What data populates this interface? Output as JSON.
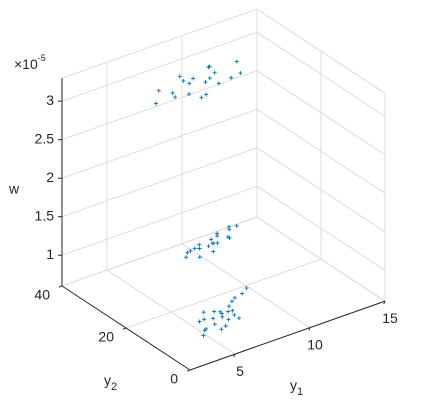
{
  "chart_data": {
    "type": "scatter3d",
    "xlabel": {
      "base": "y",
      "sub": "1"
    },
    "ylabel": {
      "base": "y",
      "sub": "2"
    },
    "zlabel": "w",
    "z_multiplier": {
      "base": "×10",
      "exp": "-5"
    },
    "xlim": [
      2,
      15
    ],
    "ylim": [
      0,
      40
    ],
    "zlim": [
      0.6,
      3.3
    ],
    "xticks": [
      5,
      10,
      15
    ],
    "yticks": [
      0,
      20,
      40
    ],
    "zticks": [
      1,
      1.5,
      2,
      2.5,
      3
    ],
    "grid": true,
    "marker": "+",
    "series": [
      {
        "color": "#0072bd",
        "x": [
          5.2,
          6.1,
          7.0,
          5.8,
          6.5,
          7.8,
          4.9,
          6.9,
          8.4,
          5.5,
          6.3,
          7.3,
          9.1,
          5.9,
          6.7,
          7.6,
          4.6,
          8.0,
          6.0,
          7.1,
          5.4,
          6.6,
          9.6,
          7.4,
          7.5,
          8.0,
          8.5,
          9.0,
          9.5,
          10.0,
          10.5,
          11.0,
          8.2,
          8.8,
          9.3,
          9.8,
          10.2,
          10.8,
          7.8,
          9.1,
          9.6,
          10.4,
          8.6,
          11.3,
          7.2,
          8.1,
          9.0,
          9.8,
          10.5,
          11.2,
          12.0,
          12.8,
          8.6,
          9.4,
          10.1,
          10.9,
          11.6,
          7.6,
          9.9,
          10.7,
          12.4,
          8.9,
          11.0,
          9.2
        ],
        "y": [
          10,
          12,
          14,
          8,
          11,
          15,
          9,
          13,
          16,
          12,
          9,
          11,
          17,
          14,
          10,
          13,
          8,
          15,
          11,
          12,
          13,
          14,
          18,
          10,
          27,
          28,
          29,
          27,
          28,
          29,
          28,
          30,
          26,
          29,
          27,
          28,
          30,
          29,
          28,
          26,
          29,
          27,
          28,
          29,
          35,
          34,
          36,
          33,
          35,
          37,
          34,
          36,
          33,
          35,
          37,
          34,
          36,
          36,
          32,
          35,
          33,
          37,
          36,
          34
        ],
        "z": [
          0.64,
          0.66,
          0.63,
          0.65,
          0.68,
          0.62,
          0.67,
          0.64,
          0.66,
          0.69,
          0.63,
          0.65,
          0.64,
          0.7,
          0.66,
          0.63,
          0.65,
          0.67,
          0.62,
          0.68,
          0.64,
          0.66,
          0.65,
          0.63,
          0.95,
          0.97,
          0.94,
          0.99,
          0.96,
          1.0,
          0.98,
          1.02,
          0.93,
          0.97,
          1.01,
          0.95,
          0.99,
          1.03,
          0.96,
          0.94,
          0.98,
          1.0,
          0.96,
          1.04,
          2.75,
          2.85,
          2.95,
          2.7,
          2.8,
          2.9,
          2.78,
          2.88,
          3.0,
          2.72,
          2.82,
          2.92,
          2.68,
          2.86,
          2.76,
          2.98,
          2.84,
          2.66,
          2.79,
          2.9
        ]
      }
    ]
  }
}
